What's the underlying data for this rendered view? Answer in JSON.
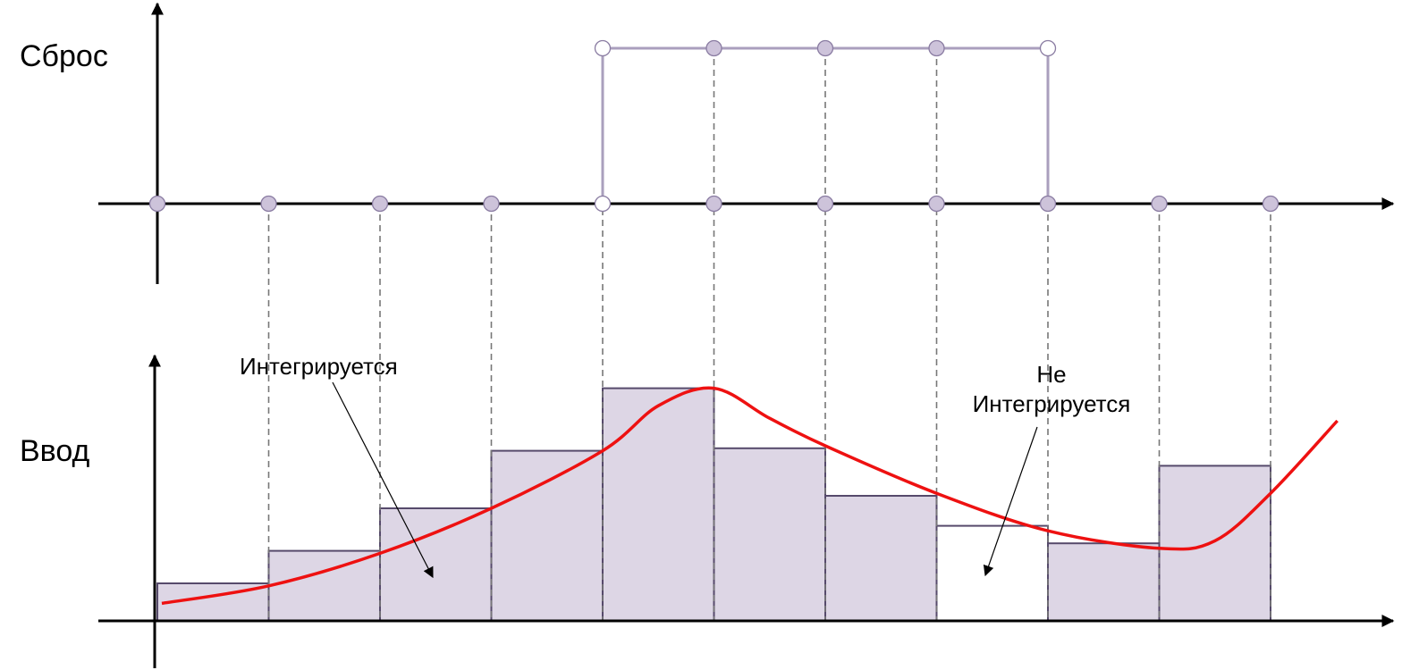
{
  "labels": {
    "reset": "Сброс",
    "input": "Ввод",
    "integrated": "Интегрируется",
    "not_integrated_line1": "Не",
    "not_integrated_line2": "Интегрируется"
  },
  "chart_data": {
    "type": "diagram",
    "samples": 11,
    "reset_signal": [
      0,
      0,
      0,
      0,
      1,
      1,
      1,
      1,
      0,
      0,
      0
    ],
    "input_levels": [
      0.15,
      0.28,
      0.45,
      0.68,
      0.93,
      0.69,
      0.5,
      0.38,
      0.31,
      0.62
    ],
    "bar_integrated": [
      true,
      true,
      true,
      true,
      true,
      true,
      true,
      false,
      true,
      true
    ],
    "input_curve": [
      [
        0.04,
        0.07
      ],
      [
        1.0,
        0.14
      ],
      [
        2.0,
        0.27
      ],
      [
        3.0,
        0.45
      ],
      [
        4.0,
        0.68
      ],
      [
        4.5,
        0.86
      ],
      [
        5.0,
        0.93
      ],
      [
        5.5,
        0.81
      ],
      [
        6.0,
        0.7
      ],
      [
        7.0,
        0.51
      ],
      [
        8.0,
        0.36
      ],
      [
        9.0,
        0.29
      ],
      [
        9.5,
        0.32
      ],
      [
        10.0,
        0.51
      ],
      [
        10.6,
        0.8
      ]
    ],
    "colors": {
      "axis": "#000000",
      "bar_fill": "#ddd6e5",
      "bar_stroke": "#564a6b",
      "reset_line": "#aa9fbd",
      "marker_fill": "#cdc3da",
      "marker_stroke": "#8a7ca2",
      "curve": "#ee1111",
      "dashed": "#777777"
    }
  }
}
